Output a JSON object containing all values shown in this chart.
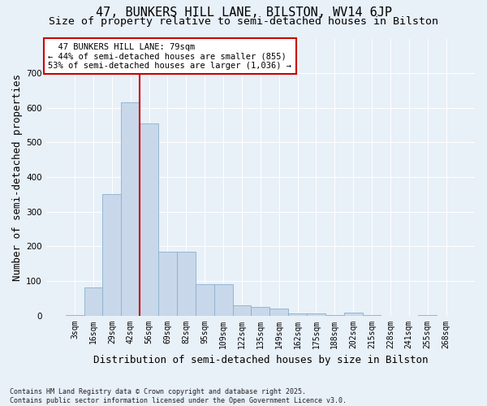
{
  "title": "47, BUNKERS HILL LANE, BILSTON, WV14 6JP",
  "subtitle": "Size of property relative to semi-detached houses in Bilston",
  "xlabel": "Distribution of semi-detached houses by size in Bilston",
  "ylabel": "Number of semi-detached properties",
  "footnote": "Contains HM Land Registry data © Crown copyright and database right 2025.\nContains public sector information licensed under the Open Government Licence v3.0.",
  "categories": [
    "3sqm",
    "16sqm",
    "29sqm",
    "42sqm",
    "56sqm",
    "69sqm",
    "82sqm",
    "95sqm",
    "109sqm",
    "122sqm",
    "135sqm",
    "149sqm",
    "162sqm",
    "175sqm",
    "188sqm",
    "202sqm",
    "215sqm",
    "228sqm",
    "241sqm",
    "255sqm",
    "268sqm"
  ],
  "values": [
    2,
    80,
    350,
    615,
    555,
    185,
    185,
    90,
    90,
    30,
    25,
    20,
    5,
    5,
    2,
    8,
    2,
    0,
    0,
    2,
    0
  ],
  "bar_color": "#c8d8ea",
  "bar_edge_color": "#8ab0cc",
  "property_sqm": 79,
  "property_label": "47 BUNKERS HILL LANE: 79sqm",
  "pct_smaller": 44,
  "count_smaller": 855,
  "pct_larger": 53,
  "count_larger": 1036,
  "vline_color": "#cc0000",
  "annotation_edge_color": "#cc0000",
  "vline_x": 3.5,
  "ylim": [
    0,
    800
  ],
  "yticks": [
    0,
    100,
    200,
    300,
    400,
    500,
    600,
    700
  ],
  "background_color": "#e8f0f8",
  "grid_color": "#d0dce8",
  "title_fontsize": 11,
  "subtitle_fontsize": 9.5,
  "axis_label_fontsize": 9,
  "tick_fontsize": 7,
  "annotation_fontsize": 7.5,
  "footnote_fontsize": 6
}
